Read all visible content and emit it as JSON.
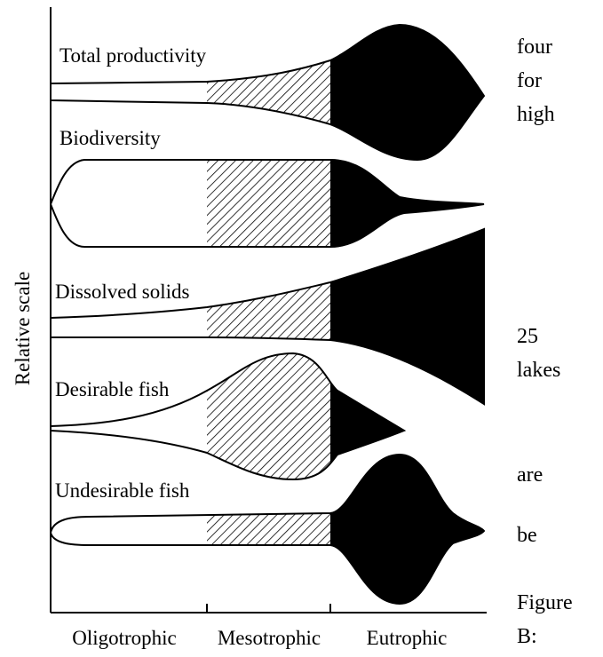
{
  "rows": [
    "Total productivity",
    "Biodiversity",
    "Dissolved solids",
    "Desirable fish",
    "Undesirable fish"
  ],
  "axis_label": "Relative scale",
  "categories": [
    "Oligotrophic",
    "Mesotrophic",
    "Eutrophic"
  ],
  "side_text": [
    "four",
    "for",
    "high",
    "25",
    "lakes",
    "are",
    "be",
    "Figure",
    "B:"
  ]
}
